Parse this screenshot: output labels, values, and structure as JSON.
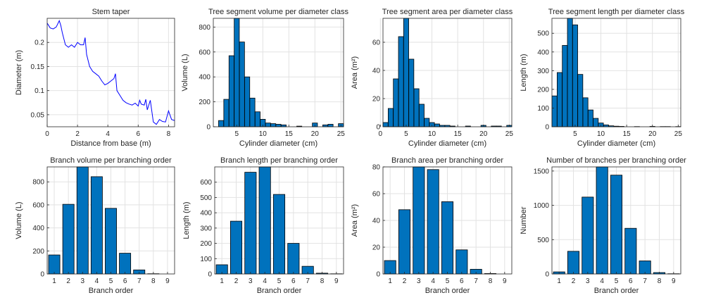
{
  "colors": {
    "bar": "#0072BD",
    "line": "#0000FF",
    "grid": "#E2E2E2"
  },
  "chart_data": [
    {
      "type": "line",
      "title": "Stem taper",
      "xlabel": "Distance from base (m)",
      "ylabel": "Diameter (m)",
      "xlim": [
        0,
        8.4
      ],
      "ylim": [
        0.025,
        0.25
      ],
      "xticks": [
        0,
        2,
        4,
        6,
        8
      ],
      "yticks": [
        0.05,
        0.1,
        0.15,
        0.2
      ],
      "x": [
        0,
        0.2,
        0.4,
        0.6,
        0.8,
        0.9,
        1.0,
        1.2,
        1.4,
        1.6,
        1.8,
        2.0,
        2.2,
        2.4,
        2.5,
        2.6,
        2.8,
        3.0,
        3.2,
        3.4,
        3.6,
        3.8,
        4.0,
        4.2,
        4.4,
        4.5,
        4.6,
        4.8,
        5.0,
        5.2,
        5.4,
        5.6,
        5.8,
        6.0,
        6.1,
        6.2,
        6.4,
        6.5,
        6.6,
        6.8,
        7.0,
        7.2,
        7.4,
        7.6,
        7.8,
        8.0,
        8.2,
        8.4
      ],
      "y": [
        0.24,
        0.23,
        0.228,
        0.232,
        0.245,
        0.235,
        0.22,
        0.195,
        0.19,
        0.195,
        0.19,
        0.2,
        0.195,
        0.195,
        0.21,
        0.175,
        0.15,
        0.14,
        0.135,
        0.13,
        0.12,
        0.112,
        0.115,
        0.12,
        0.125,
        0.135,
        0.1,
        0.09,
        0.08,
        0.075,
        0.072,
        0.07,
        0.074,
        0.068,
        0.08,
        0.072,
        0.07,
        0.082,
        0.06,
        0.08,
        0.035,
        0.03,
        0.04,
        0.036,
        0.035,
        0.058,
        0.04,
        0.038
      ]
    },
    {
      "type": "bar",
      "title": "Tree segment volume per diameter class",
      "xlabel": "Cylinder diameter (cm)",
      "ylabel": "Volume (L)",
      "xlim": [
        0.5,
        25.5
      ],
      "ylim": [
        0,
        870
      ],
      "xticks": [
        5,
        10,
        15,
        20,
        25
      ],
      "yticks": [
        0,
        200,
        400,
        600,
        800
      ],
      "categories": [
        1,
        2,
        3,
        4,
        5,
        6,
        7,
        8,
        9,
        10,
        11,
        12,
        13,
        14,
        15,
        16,
        17,
        18,
        19,
        20,
        21,
        22,
        23,
        24,
        25
      ],
      "values": [
        0,
        50,
        220,
        570,
        870,
        680,
        400,
        230,
        120,
        60,
        30,
        25,
        20,
        15,
        0,
        0,
        5,
        0,
        0,
        30,
        0,
        15,
        20,
        0,
        25
      ]
    },
    {
      "type": "bar",
      "title": "Tree segment area per diameter class",
      "xlabel": "Cylinder diameter (cm)",
      "ylabel": "Area (m²)",
      "xlim": [
        0.5,
        25.5
      ],
      "ylim": [
        0,
        77
      ],
      "xticks": [
        0,
        5,
        10,
        15,
        20,
        25
      ],
      "yticks": [
        0,
        20,
        40,
        60
      ],
      "categories": [
        1,
        2,
        3,
        4,
        5,
        6,
        7,
        8,
        9,
        10,
        11,
        12,
        13,
        14,
        15,
        16,
        17,
        18,
        19,
        20,
        21,
        22,
        23,
        24,
        25
      ],
      "values": [
        3,
        13,
        34,
        64,
        77,
        48,
        27,
        16,
        6,
        3,
        2,
        1,
        1,
        0.5,
        0,
        0,
        0.5,
        0,
        0,
        1,
        0,
        0.5,
        0.5,
        0,
        1
      ]
    },
    {
      "type": "bar",
      "title": "Tree segment length per diameter class",
      "xlabel": "Cylinder diameter (cm)",
      "ylabel": "Length (m)",
      "xlim": [
        0.5,
        25.5
      ],
      "ylim": [
        0,
        580
      ],
      "xticks": [
        5,
        10,
        15,
        20,
        25
      ],
      "yticks": [
        0,
        100,
        200,
        300,
        400,
        500
      ],
      "categories": [
        1,
        2,
        3,
        4,
        5,
        6,
        7,
        8,
        9,
        10,
        11,
        12,
        13,
        14,
        15,
        16,
        17,
        18,
        19,
        20,
        21,
        22,
        23,
        24,
        25
      ],
      "values": [
        165,
        290,
        435,
        580,
        545,
        280,
        155,
        90,
        45,
        20,
        10,
        5,
        3,
        2,
        0,
        0,
        1,
        0,
        0,
        2,
        0,
        1,
        1,
        0,
        1
      ]
    },
    {
      "type": "bar",
      "title": "Branch volume per branching order",
      "xlabel": "Branch order",
      "ylabel": "Volume (L)",
      "xlim": [
        0.5,
        9.5
      ],
      "ylim": [
        0,
        930
      ],
      "xticks": [
        1,
        2,
        3,
        4,
        5,
        6,
        7,
        8,
        9
      ],
      "yticks": [
        0,
        200,
        400,
        600,
        800
      ],
      "categories": [
        1,
        2,
        3,
        4,
        5,
        6,
        7,
        8,
        9
      ],
      "values": [
        165,
        605,
        930,
        845,
        570,
        180,
        35,
        2,
        0
      ]
    },
    {
      "type": "bar",
      "title": "Branch length per branching order",
      "xlabel": "Branch order",
      "ylabel": "Length (m)",
      "xlim": [
        0.5,
        9.5
      ],
      "ylim": [
        0,
        700
      ],
      "xticks": [
        1,
        2,
        3,
        4,
        5,
        6,
        7,
        8,
        9
      ],
      "yticks": [
        0,
        100,
        200,
        300,
        400,
        500,
        600
      ],
      "categories": [
        1,
        2,
        3,
        4,
        5,
        6,
        7,
        8,
        9
      ],
      "values": [
        60,
        345,
        665,
        700,
        520,
        200,
        50,
        5,
        1
      ]
    },
    {
      "type": "bar",
      "title": "Branch area per branching order",
      "xlabel": "Branch order",
      "ylabel": "Area (m²)",
      "xlim": [
        0.5,
        9.5
      ],
      "ylim": [
        0,
        80
      ],
      "xticks": [
        1,
        2,
        3,
        4,
        5,
        6,
        7,
        8,
        9
      ],
      "yticks": [
        0,
        20,
        40,
        60,
        80
      ],
      "categories": [
        1,
        2,
        3,
        4,
        5,
        6,
        7,
        8,
        9
      ],
      "values": [
        10,
        48,
        80,
        78,
        54,
        18,
        3.5,
        0.3,
        0
      ]
    },
    {
      "type": "bar",
      "title": "Number of branches per branching order",
      "xlabel": "Branch order",
      "ylabel": "Number",
      "xlim": [
        0.5,
        9.5
      ],
      "ylim": [
        0,
        1560
      ],
      "xticks": [
        1,
        2,
        3,
        4,
        5,
        6,
        7,
        8,
        9
      ],
      "yticks": [
        0,
        500,
        1000,
        1500
      ],
      "categories": [
        1,
        2,
        3,
        4,
        5,
        6,
        7,
        8,
        9
      ],
      "values": [
        30,
        330,
        1120,
        1560,
        1440,
        665,
        190,
        20,
        3
      ]
    }
  ]
}
